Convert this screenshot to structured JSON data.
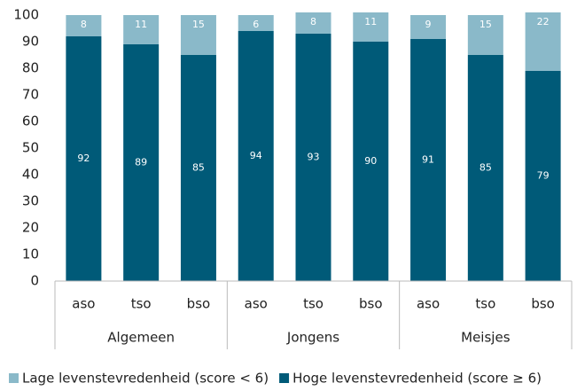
{
  "chart_data": {
    "type": "stacked_bar",
    "categories": [
      "aso",
      "tso",
      "bso",
      "aso",
      "tso",
      "bso",
      "aso",
      "tso",
      "bso"
    ],
    "groups": [
      "Algemeen",
      "Jongens",
      "Meisjes"
    ],
    "series": [
      {
        "name": "Lage levenstevredenheid (score < 6)",
        "color": "#8ab9c9",
        "values": [
          8,
          11,
          15,
          6,
          8,
          11,
          9,
          15,
          22
        ]
      },
      {
        "name": "Hoge levenstevredenheid (score ≥ 6)",
        "color": "#005a78",
        "values": [
          92,
          89,
          85,
          94,
          93,
          90,
          91,
          85,
          79
        ]
      }
    ],
    "ylim": [
      0,
      100
    ],
    "yticks": [
      0,
      10,
      20,
      30,
      40,
      50,
      60,
      70,
      80,
      90,
      100
    ],
    "grid": false,
    "legend": "bottom"
  }
}
